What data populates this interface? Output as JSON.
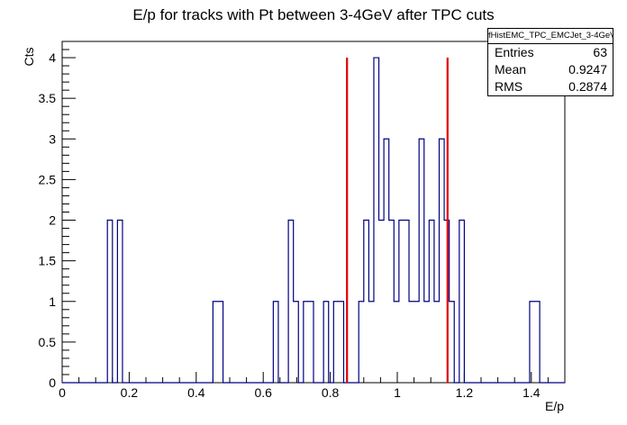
{
  "chart_data": {
    "type": "histogram",
    "title": "E/p for tracks with Pt between 3-4GeV after TPC cuts",
    "xlabel": "E/p",
    "ylabel": "Cts",
    "xlim": [
      0,
      1.5
    ],
    "ylim": [
      0,
      4.2
    ],
    "bin_width": 0.015,
    "x_ticks": [
      "0",
      "0.2",
      "0.4",
      "0.6",
      "0.8",
      "1",
      "1.2",
      "1.4"
    ],
    "y_ticks": [
      "0",
      "0.5",
      "1",
      "1.5",
      "2",
      "2.5",
      "3",
      "3.5",
      "4"
    ],
    "bins": [
      {
        "x": 0.135,
        "y": 2
      },
      {
        "x": 0.165,
        "y": 2
      },
      {
        "x": 0.45,
        "y": 1
      },
      {
        "x": 0.465,
        "y": 1
      },
      {
        "x": 0.63,
        "y": 1
      },
      {
        "x": 0.675,
        "y": 2
      },
      {
        "x": 0.69,
        "y": 1
      },
      {
        "x": 0.72,
        "y": 1
      },
      {
        "x": 0.735,
        "y": 1
      },
      {
        "x": 0.78,
        "y": 1
      },
      {
        "x": 0.81,
        "y": 1
      },
      {
        "x": 0.825,
        "y": 1
      },
      {
        "x": 0.885,
        "y": 1
      },
      {
        "x": 0.9,
        "y": 2
      },
      {
        "x": 0.915,
        "y": 1
      },
      {
        "x": 0.93,
        "y": 4
      },
      {
        "x": 0.945,
        "y": 2
      },
      {
        "x": 0.96,
        "y": 3
      },
      {
        "x": 0.975,
        "y": 2
      },
      {
        "x": 0.99,
        "y": 1
      },
      {
        "x": 1.005,
        "y": 2
      },
      {
        "x": 1.02,
        "y": 2
      },
      {
        "x": 1.035,
        "y": 1
      },
      {
        "x": 1.05,
        "y": 1
      },
      {
        "x": 1.065,
        "y": 3
      },
      {
        "x": 1.08,
        "y": 1
      },
      {
        "x": 1.095,
        "y": 2
      },
      {
        "x": 1.11,
        "y": 1
      },
      {
        "x": 1.125,
        "y": 3
      },
      {
        "x": 1.14,
        "y": 2
      },
      {
        "x": 1.155,
        "y": 1
      },
      {
        "x": 1.185,
        "y": 2
      },
      {
        "x": 1.395,
        "y": 1
      },
      {
        "x": 1.41,
        "y": 1
      }
    ],
    "cut_lines_x": [
      0.85,
      1.15
    ],
    "colors": {
      "histogram": "#000080",
      "cut_lines": "#e00000",
      "axes": "#000000"
    },
    "stats_box": {
      "title": "fHistEMC_TPC_EMCJet_3-4GeV",
      "rows": [
        {
          "label": "Entries",
          "value": "63"
        },
        {
          "label": "Mean",
          "value": "0.9247"
        },
        {
          "label": "RMS",
          "value": "0.2874"
        }
      ]
    }
  }
}
